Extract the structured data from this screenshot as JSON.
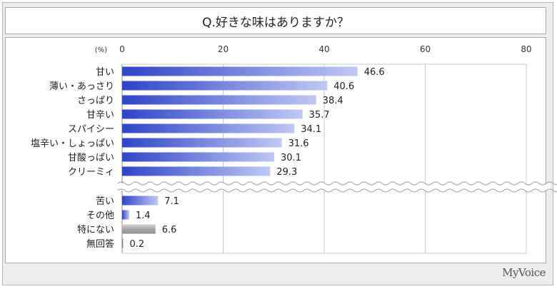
{
  "title": "Q.好きな味はありますか？",
  "brand": "MyVoice",
  "colors": {
    "bar_gradient_start": "#2f44c8",
    "bar_gradient_end": "#bfc8f3",
    "bar_gray": "#a8a8a8",
    "grid": "#c8c8c8"
  },
  "chart_data": {
    "type": "bar",
    "orientation": "horizontal",
    "unit_label": "(%)",
    "xlim": [
      0,
      80
    ],
    "ticks": [
      0,
      20,
      40,
      60,
      80
    ],
    "grid": true,
    "axis_break": true,
    "groups": [
      {
        "categories": [
          "甘い",
          "薄い・あっさり",
          "さっぱり",
          "甘辛い",
          "スパイシー",
          "塩辛い・しょっぱい",
          "甘酸っぱい",
          "クリーミィ"
        ],
        "values": [
          46.6,
          40.6,
          38.4,
          35.7,
          34.1,
          31.6,
          30.1,
          29.3
        ],
        "value_labels": [
          "46.6",
          "40.6",
          "38.4",
          "35.7",
          "34.1",
          "31.6",
          "30.1",
          "29.3"
        ],
        "style": [
          "blue",
          "blue",
          "blue",
          "blue",
          "blue",
          "blue",
          "blue",
          "blue"
        ]
      },
      {
        "categories": [
          "苦い",
          "その他",
          "特にない",
          "無回答"
        ],
        "values": [
          7.1,
          1.4,
          6.6,
          0.2
        ],
        "value_labels": [
          "7.1",
          "1.4",
          "6.6",
          "0.2"
        ],
        "style": [
          "blue",
          "blue",
          "gray",
          "blue"
        ]
      }
    ]
  }
}
